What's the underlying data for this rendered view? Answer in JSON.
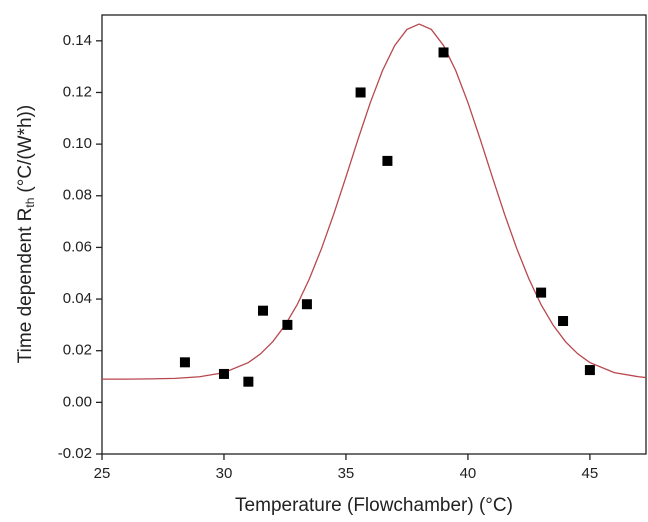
{
  "chart_data": {
    "type": "scatter",
    "x_label": "Temperature (Flowchamber) (°C)",
    "y_label": {
      "main": "Time dependent R",
      "sub": "th",
      "unit": "(°C/(W*h))"
    },
    "xlim": [
      25,
      47.3
    ],
    "ylim": [
      -0.02,
      0.15
    ],
    "xticks": [
      25,
      30,
      35,
      40,
      45
    ],
    "yticks": [
      {
        "value": -0.02,
        "label": "-0.02"
      },
      {
        "value": 0,
        "label": "0.00"
      },
      {
        "value": 0.02,
        "label": "0.02"
      },
      {
        "value": 0.04,
        "label": "0.04"
      },
      {
        "value": 0.06,
        "label": "0.06"
      },
      {
        "value": 0.08,
        "label": "0.08"
      },
      {
        "value": 0.1,
        "label": "0.10"
      },
      {
        "value": 0.12,
        "label": "0.12"
      },
      {
        "value": 0.14,
        "label": "0.14"
      }
    ],
    "series": [
      {
        "kind": "points",
        "color": "#000000",
        "x": [
          28.4,
          30.0,
          31.0,
          31.6,
          32.6,
          33.4,
          35.6,
          36.7,
          39.0,
          43.0,
          43.9,
          45.0
        ],
        "values": [
          0.0155,
          0.011,
          0.008,
          0.0355,
          0.03,
          0.038,
          0.12,
          0.0935,
          0.1355,
          0.0425,
          0.0315,
          0.0125
        ]
      },
      {
        "kind": "line",
        "color": "#b8474d",
        "x": [
          25,
          26,
          27,
          28,
          29,
          30,
          31,
          31.5,
          32,
          32.5,
          33,
          33.5,
          34,
          34.5,
          35,
          35.5,
          36,
          36.5,
          37,
          37.5,
          38,
          38.5,
          39,
          39.5,
          40,
          40.5,
          41,
          41.5,
          42,
          42.5,
          43,
          43.5,
          44,
          44.5,
          45,
          46,
          47,
          47.3
        ],
        "values": [
          0.009,
          0.009,
          0.0091,
          0.0093,
          0.0099,
          0.0115,
          0.0154,
          0.0188,
          0.0235,
          0.0298,
          0.0378,
          0.0478,
          0.0596,
          0.0729,
          0.0873,
          0.102,
          0.1161,
          0.1285,
          0.1382,
          0.1444,
          0.1465,
          0.1444,
          0.1382,
          0.1285,
          0.1161,
          0.102,
          0.0873,
          0.0729,
          0.0596,
          0.0478,
          0.0378,
          0.0298,
          0.0235,
          0.0188,
          0.0154,
          0.0115,
          0.0099,
          0.0096
        ]
      }
    ]
  }
}
